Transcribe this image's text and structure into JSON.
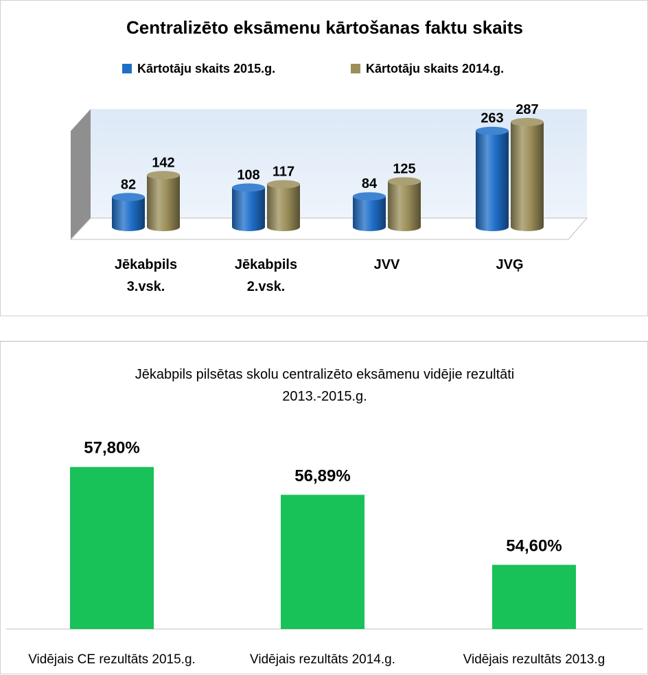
{
  "chart_data": [
    {
      "type": "bar",
      "title": "Centralizēto eksāmenu kārtošanas faktu skaits",
      "categories": [
        [
          "Jēkabpils",
          "3.vsk."
        ],
        [
          "Jēkabpils",
          "2.vsk."
        ],
        [
          "JVV"
        ],
        [
          "JVĢ"
        ]
      ],
      "series": [
        {
          "name": "Kārtotāju skaits 2015.g.",
          "values": [
            82,
            108,
            84,
            263
          ],
          "color": "#1f6fc9"
        },
        {
          "name": "Kārtotāju skaits 2014.g.",
          "values": [
            142,
            117,
            125,
            287
          ],
          "color": "#9c8f5a"
        }
      ],
      "data_labels": [
        [
          "82",
          "142"
        ],
        [
          "108",
          "117"
        ],
        [
          "84",
          "125"
        ],
        [
          "263",
          "287"
        ]
      ],
      "ylim": [
        0,
        300
      ],
      "legend_position": "top",
      "grid": false,
      "style": "3d-cylinder"
    },
    {
      "type": "bar",
      "title_lines": [
        "Jēkabpils pilsētas skolu centralizēto eksāmenu vidējie rezultāti",
        "2013.-2015.g."
      ],
      "categories": [
        "Vidējais CE rezultāts 2015.g.",
        "Vidējais rezultāts 2014.g.",
        "Vidējais rezultāts 2013.g"
      ],
      "values": [
        57.8,
        56.89,
        54.6
      ],
      "data_labels": [
        "57,80%",
        "56,89%",
        "54,60%"
      ],
      "ylim": [
        52.5,
        58.4
      ],
      "color": "#19c159",
      "grid": false
    }
  ]
}
